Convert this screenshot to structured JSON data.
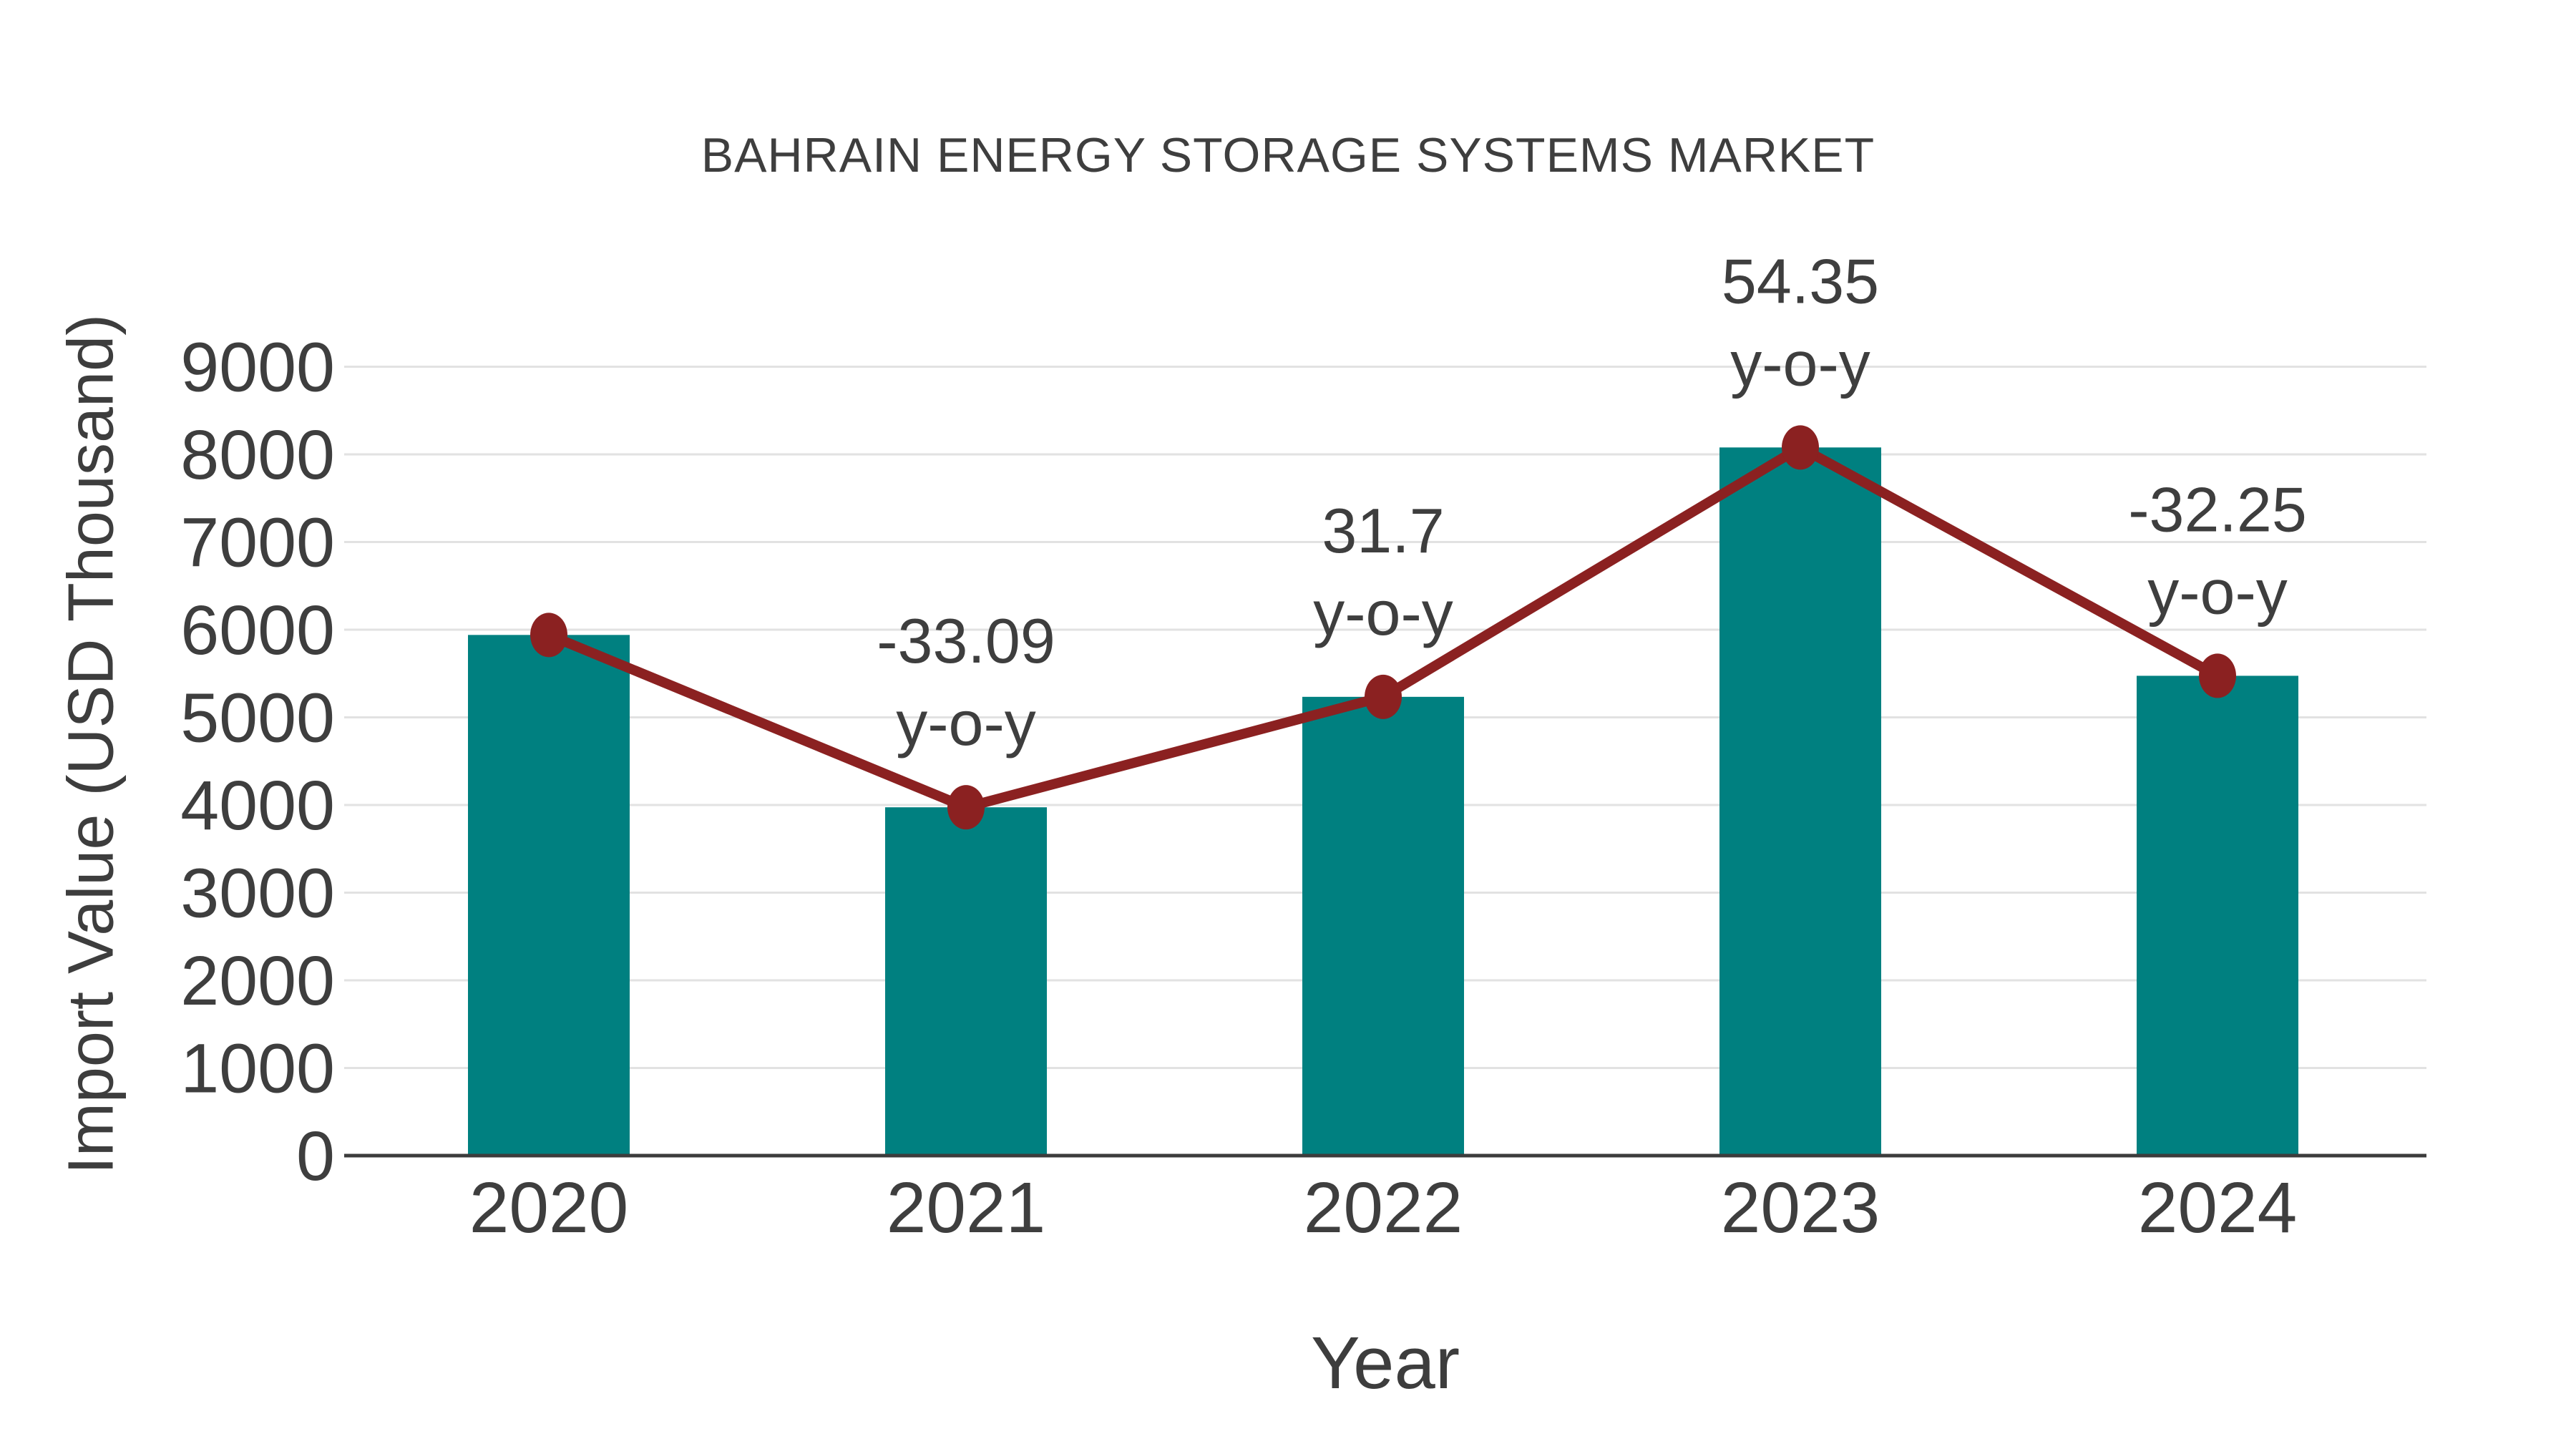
{
  "chart_data": {
    "type": "bar",
    "title": "BAHRAIN ENERGY STORAGE SYSTEMS MARKET",
    "xlabel": "Year",
    "ylabel": "Import Value (USD Thousand)",
    "categories": [
      "2020",
      "2021",
      "2022",
      "2023",
      "2024"
    ],
    "series": [
      {
        "name": "import-value-bars",
        "type": "bar",
        "values": [
          5940,
          3974,
          5234,
          8079,
          5474
        ]
      },
      {
        "name": "import-value-trend-line",
        "type": "line",
        "values": [
          5940,
          3974,
          5234,
          8079,
          5474
        ]
      }
    ],
    "annotations": [
      {
        "category": "2021",
        "lines": [
          "-33.09",
          "y-o-y"
        ]
      },
      {
        "category": "2022",
        "lines": [
          "31.7",
          "y-o-y"
        ]
      },
      {
        "category": "2023",
        "lines": [
          "54.35",
          "y-o-y"
        ]
      },
      {
        "category": "2024",
        "lines": [
          "-32.25",
          "y-o-y"
        ]
      }
    ],
    "yticks": [
      0,
      1000,
      2000,
      3000,
      4000,
      5000,
      6000,
      7000,
      8000,
      9000
    ],
    "ylim": [
      0,
      9000
    ],
    "ytick_step": 1000,
    "grid": true,
    "legend_position": "none",
    "colors": {
      "bar": "#008080",
      "line": "#8B2121",
      "marker": "#8B2121",
      "text": "#3E3E3E",
      "grid": "#E2E2E2",
      "axis": "#3C3C3C",
      "background": "#FFFFFF"
    }
  }
}
